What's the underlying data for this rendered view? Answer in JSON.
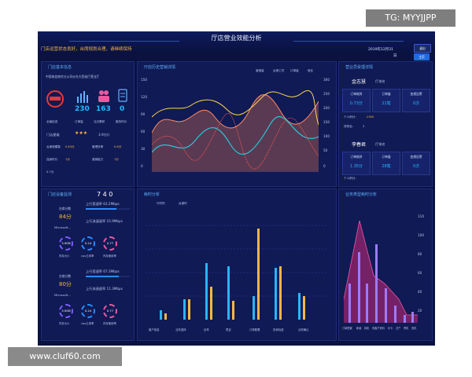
{
  "watermark_top": "TG: MYYJJPP",
  "watermark_bottom": "www.cluf60.com",
  "header": {
    "title": "厅店营业效能分析",
    "subtitle": "门店运营状态良好，台席规划合理，请继续保持",
    "date": "2019年12月31",
    "time": "日",
    "exit_label": "退出",
    "home_label": "主页"
  },
  "store_panel": {
    "title": "门店基本信息",
    "store_name": "中国电信南京分公司@东大西街厅营业厅",
    "counts": [
      "230",
      "163",
      "0"
    ],
    "count_labels": [
      "全面检查",
      "订单量",
      "当日累积",
      "服务时长"
    ],
    "percent": "92%",
    "level_label": "门店星级",
    "level_value": "3.9(分)",
    "rows": [
      {
        "l1": "台席规模数",
        "v1": "0.63分",
        "l2": "管理效率",
        "v2": "0.6分"
      },
      {
        "l1": "连续时长",
        "v1": "1分",
        "l2": "营销能力",
        "v2": "1分"
      }
    ],
    "extra": "0.7分"
  },
  "line_panel": {
    "title": "厅店历史营销详情",
    "legend": [
      "营销量",
      "台席工时",
      "订单量",
      "就业"
    ],
    "y_left": [
      "150",
      "120",
      "90",
      "60",
      "30",
      "0"
    ],
    "y_right": [
      "300",
      "250",
      "200",
      "150",
      "100",
      "50",
      "0"
    ]
  },
  "staff_panel": {
    "title": "营业员受理详情",
    "people": [
      {
        "name": "金志慧",
        "rank_label": "厅排名",
        "c1": "订单耗时",
        "v1": "0.73分",
        "c2": "订单量",
        "v2": "21笔",
        "c3": "违规告警",
        "v3": "0次",
        "score_label": "个人积分：",
        "score": "-2500",
        "rank": "排排名：",
        "rank_val": "3"
      },
      {
        "name": "李春君",
        "rank_label": "厅排名",
        "c1": "订单耗时",
        "v1": "1.35分",
        "c2": "订单量",
        "v2": "28笔",
        "c3": "违规告警",
        "v3": "0次",
        "score_label": "个人积分：",
        "score": "",
        "rank": "",
        "rank_val": ""
      }
    ]
  },
  "net_panel": {
    "title": "门店设备监测",
    "numbers": "7 4 0",
    "devices": [
      {
        "score_label": "台席分数",
        "score": "84分",
        "up": "上行宽速率 63.2Mbps",
        "down": "上行流速速率 15.9Mbps",
        "os": "Microsoft...",
        "g1": "3.9GB",
        "g2": "0.24",
        "g3": "0.77",
        "gl": [
          "内存大小",
          "cpu占用率",
          "内存使用率"
        ]
      },
      {
        "score_label": "台席分数",
        "score": "80分",
        "up": "上行宽速率 67.3Mbps",
        "down": "上行流速速率 11.3Mbps",
        "os": "Microsoft...",
        "g1": "3.9GB",
        "g2": "0.24",
        "g3": "0.77",
        "gl": [
          "内存大小",
          "cpu占用率",
          "内存使用率"
        ]
      }
    ]
  },
  "bar_panel": {
    "title": "耗时分析",
    "legend": [
      "厅时时",
      "台席时"
    ],
    "categories": [
      "客户信息",
      "业务选择",
      "证号",
      "签证",
      "订单配置",
      "查询包费",
      "业务确认"
    ]
  },
  "area_panel": {
    "title": "业务类型耗时分析",
    "categories": [
      "订单配置",
      "新装",
      "拆机",
      "改客户资料",
      "补卡",
      "过户",
      "停机",
      "复机"
    ],
    "y_right": [
      "110",
      "100",
      "80",
      "60",
      "40",
      "20"
    ]
  },
  "colors": {
    "bg": "#0b1240",
    "accent": "#27b8ff",
    "gold": "#f5b841"
  }
}
